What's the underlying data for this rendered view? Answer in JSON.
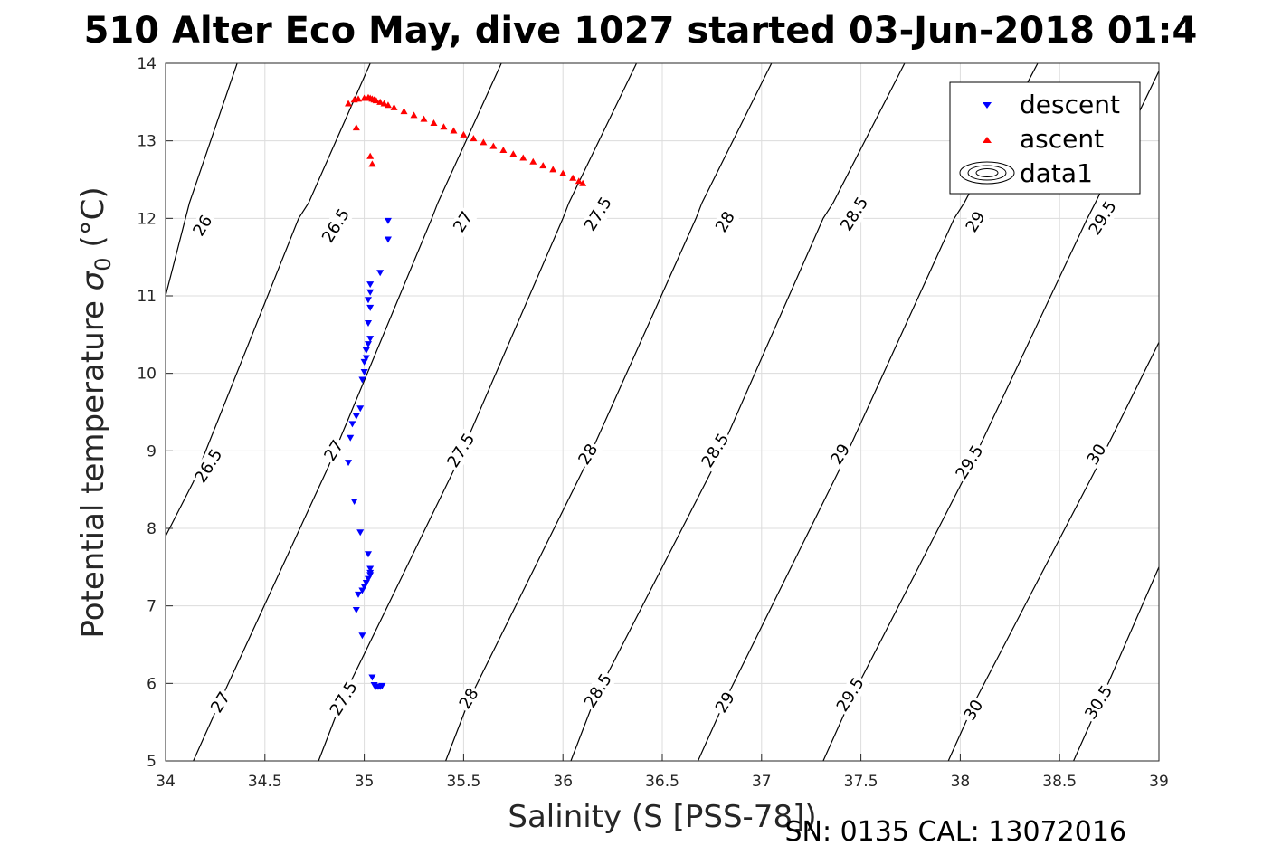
{
  "chart_data": {
    "type": "scatter",
    "title": "510 Alter Eco May, dive 1027 started 03-Jun-2018 01:4",
    "xlabel": "Salinity (S [PSS-78])",
    "ylabel": "Potential temperature σ₀ (°C)",
    "ylabel_main": "Potential temperature ",
    "ylabel_sigma": "σ",
    "ylabel_sub": "0",
    "ylabel_unit": " (°C)",
    "footer": "SN: 0135  CAL: 13072016",
    "xlim": [
      34,
      39
    ],
    "ylim": [
      5,
      14
    ],
    "xticks": [
      "34",
      "34.5",
      "35",
      "35.5",
      "36",
      "36.5",
      "37",
      "37.5",
      "38",
      "38.5",
      "39"
    ],
    "yticks": [
      "5",
      "6",
      "7",
      "8",
      "9",
      "10",
      "11",
      "12",
      "13",
      "14"
    ],
    "grid": true,
    "legend": {
      "placement": "top-right",
      "entries": [
        {
          "name": "descent",
          "marker": "triangle-down",
          "color": "#0000ff"
        },
        {
          "name": "ascent",
          "marker": "triangle-up",
          "color": "#ff0000"
        },
        {
          "name": "data1",
          "marker": "contour",
          "color": "#000000"
        }
      ]
    },
    "contours": {
      "name": "data1",
      "levels": [
        26,
        26.5,
        27,
        27.5,
        28,
        28.5,
        29,
        29.5,
        30,
        30.5
      ],
      "lines": [
        {
          "level": "26",
          "points": [
            [
              34,
              11.0
            ],
            [
              34.1,
              12.0
            ],
            [
              34.12,
              12.2
            ],
            [
              34.36,
              14.0
            ]
          ]
        },
        {
          "level": "26.5",
          "points": [
            [
              34,
              7.9
            ],
            [
              34.14,
              8.6
            ],
            [
              34.67,
              12.0
            ],
            [
              34.72,
              12.2
            ],
            [
              35.03,
              14.0
            ]
          ]
        },
        {
          "level": "27",
          "points": [
            [
              34.14,
              5.0
            ],
            [
              34.28,
              5.8
            ],
            [
              34.82,
              8.8
            ],
            [
              35.34,
              12.0
            ],
            [
              35.37,
              12.2
            ],
            [
              35.69,
              14.0
            ]
          ]
        },
        {
          "level": "27.5",
          "points": [
            [
              34.77,
              5.0
            ],
            [
              34.89,
              5.8
            ],
            [
              35.46,
              8.8
            ],
            [
              36.0,
              12.0
            ],
            [
              36.03,
              12.2
            ],
            [
              36.37,
              14.0
            ]
          ]
        },
        {
          "level": "28",
          "points": [
            [
              35.41,
              5.0
            ],
            [
              35.53,
              5.8
            ],
            [
              36.11,
              8.8
            ],
            [
              36.67,
              12.0
            ],
            [
              36.7,
              12.2
            ],
            [
              37.05,
              14.0
            ]
          ]
        },
        {
          "level": "28.5",
          "points": [
            [
              36.04,
              5.0
            ],
            [
              36.16,
              5.8
            ],
            [
              36.76,
              8.8
            ],
            [
              37.31,
              12.0
            ],
            [
              37.36,
              12.2
            ],
            [
              37.72,
              14.0
            ]
          ]
        },
        {
          "level": "29",
          "points": [
            [
              36.68,
              5.0
            ],
            [
              36.82,
              5.8
            ],
            [
              37.4,
              8.8
            ],
            [
              37.97,
              12.0
            ],
            [
              38.02,
              12.2
            ],
            [
              38.39,
              14.0
            ]
          ]
        },
        {
          "level": "29.5",
          "points": [
            [
              37.31,
              5.0
            ],
            [
              37.45,
              5.8
            ],
            [
              38.05,
              8.8
            ],
            [
              38.64,
              12.0
            ],
            [
              38.68,
              12.2
            ],
            [
              39.0,
              13.9
            ]
          ]
        },
        {
          "level": "30",
          "points": [
            [
              37.94,
              5.0
            ],
            [
              38.08,
              5.8
            ],
            [
              38.69,
              8.8
            ],
            [
              39.0,
              10.4
            ]
          ]
        },
        {
          "level": "30.5",
          "points": [
            [
              38.57,
              5.0
            ],
            [
              38.71,
              5.8
            ],
            [
              39.0,
              7.5
            ]
          ]
        }
      ],
      "labels": [
        {
          "text": "26",
          "s": 34.19,
          "t": 11.9
        },
        {
          "text": "26.5",
          "s": 34.22,
          "t": 8.8
        },
        {
          "text": "26.5",
          "s": 34.86,
          "t": 11.9
        },
        {
          "text": "27",
          "s": 34.28,
          "t": 5.75
        },
        {
          "text": "27",
          "s": 34.85,
          "t": 9.0
        },
        {
          "text": "27",
          "s": 35.5,
          "t": 11.95
        },
        {
          "text": "27.5",
          "s": 34.9,
          "t": 5.8
        },
        {
          "text": "27.5",
          "s": 35.49,
          "t": 9.0
        },
        {
          "text": "27.5",
          "s": 36.18,
          "t": 12.05
        },
        {
          "text": "28",
          "s": 35.53,
          "t": 5.8
        },
        {
          "text": "28",
          "s": 36.13,
          "t": 8.95
        },
        {
          "text": "28",
          "s": 36.82,
          "t": 11.95
        },
        {
          "text": "28.5",
          "s": 36.18,
          "t": 5.9
        },
        {
          "text": "28.5",
          "s": 36.77,
          "t": 9.0
        },
        {
          "text": "28.5",
          "s": 37.47,
          "t": 12.05
        },
        {
          "text": "29",
          "s": 36.82,
          "t": 5.75
        },
        {
          "text": "29",
          "s": 37.4,
          "t": 8.95
        },
        {
          "text": "29",
          "s": 38.08,
          "t": 11.95
        },
        {
          "text": "29.5",
          "s": 37.45,
          "t": 5.85
        },
        {
          "text": "29.5",
          "s": 38.05,
          "t": 8.85
        },
        {
          "text": "29.5",
          "s": 38.72,
          "t": 12.0
        },
        {
          "text": "30",
          "s": 38.07,
          "t": 5.65
        },
        {
          "text": "30",
          "s": 38.69,
          "t": 8.95
        },
        {
          "text": "30.5",
          "s": 38.7,
          "t": 5.75
        }
      ]
    },
    "series": [
      {
        "name": "descent",
        "marker": "triangle-down",
        "color": "#0000ff",
        "points": [
          [
            35.12,
            11.97
          ],
          [
            35.12,
            11.73
          ],
          [
            35.08,
            11.3
          ],
          [
            35.03,
            11.15
          ],
          [
            35.03,
            11.05
          ],
          [
            35.02,
            10.95
          ],
          [
            35.03,
            10.85
          ],
          [
            35.02,
            10.65
          ],
          [
            35.03,
            10.45
          ],
          [
            35.02,
            10.38
          ],
          [
            35.01,
            10.3
          ],
          [
            35.01,
            10.2
          ],
          [
            35.0,
            10.15
          ],
          [
            35.0,
            10.02
          ],
          [
            34.99,
            9.92
          ],
          [
            34.98,
            9.55
          ],
          [
            34.96,
            9.45
          ],
          [
            34.94,
            9.35
          ],
          [
            34.93,
            9.17
          ],
          [
            34.92,
            8.85
          ],
          [
            34.95,
            8.35
          ],
          [
            34.98,
            7.95
          ],
          [
            35.02,
            7.67
          ],
          [
            35.03,
            7.48
          ],
          [
            35.03,
            7.43
          ],
          [
            35.03,
            7.4
          ],
          [
            35.02,
            7.35
          ],
          [
            35.01,
            7.3
          ],
          [
            35.0,
            7.25
          ],
          [
            34.99,
            7.2
          ],
          [
            34.97,
            7.15
          ],
          [
            34.96,
            6.95
          ],
          [
            34.99,
            6.62
          ],
          [
            35.04,
            6.08
          ],
          [
            35.05,
            5.98
          ],
          [
            35.06,
            5.96
          ],
          [
            35.07,
            5.96
          ],
          [
            35.08,
            5.96
          ],
          [
            35.09,
            5.97
          ]
        ]
      },
      {
        "name": "ascent",
        "marker": "triangle-up",
        "color": "#ff0000",
        "points": [
          [
            34.92,
            13.48
          ],
          [
            34.95,
            13.53
          ],
          [
            34.97,
            13.54
          ],
          [
            35.0,
            13.55
          ],
          [
            35.02,
            13.56
          ],
          [
            35.03,
            13.55
          ],
          [
            35.04,
            13.54
          ],
          [
            35.05,
            13.53
          ],
          [
            35.06,
            13.52
          ],
          [
            35.08,
            13.5
          ],
          [
            35.1,
            13.48
          ],
          [
            35.12,
            13.46
          ],
          [
            35.15,
            13.43
          ],
          [
            35.2,
            13.38
          ],
          [
            35.25,
            13.33
          ],
          [
            35.3,
            13.28
          ],
          [
            35.35,
            13.23
          ],
          [
            35.4,
            13.18
          ],
          [
            35.45,
            13.13
          ],
          [
            35.5,
            13.08
          ],
          [
            35.55,
            13.03
          ],
          [
            35.6,
            12.98
          ],
          [
            35.65,
            12.93
          ],
          [
            35.7,
            12.88
          ],
          [
            35.75,
            12.83
          ],
          [
            35.8,
            12.78
          ],
          [
            35.85,
            12.73
          ],
          [
            35.9,
            12.68
          ],
          [
            35.95,
            12.63
          ],
          [
            36.0,
            12.58
          ],
          [
            36.05,
            12.52
          ],
          [
            36.08,
            12.48
          ],
          [
            36.1,
            12.45
          ],
          [
            34.96,
            13.17
          ],
          [
            35.03,
            12.8
          ],
          [
            35.04,
            12.7
          ]
        ]
      }
    ]
  }
}
